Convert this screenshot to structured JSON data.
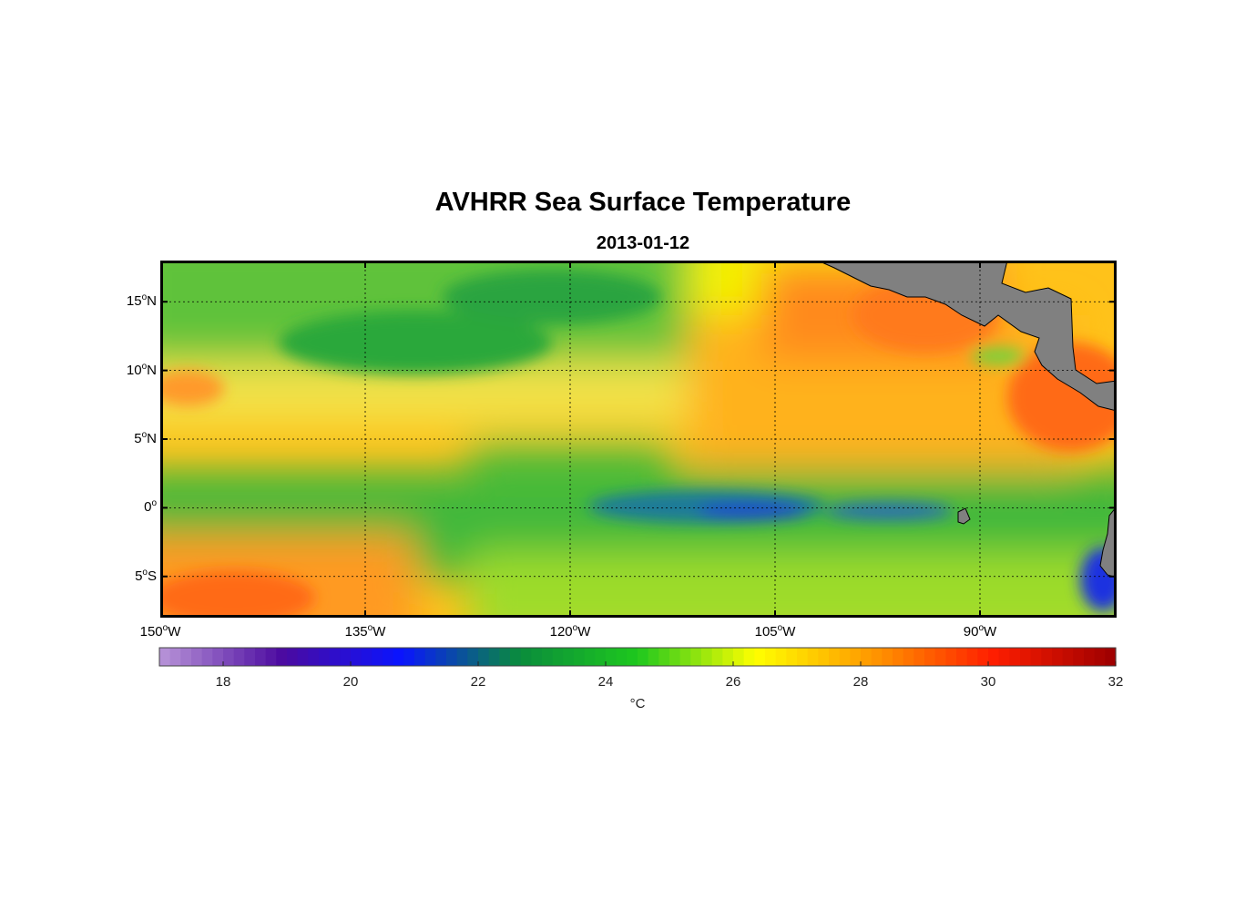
{
  "title": "AVHRR Sea Surface Temperature",
  "subtitle": "2013-01-12",
  "map": {
    "lat_labels": [
      {
        "value": 15,
        "deg": "15",
        "hem": "N"
      },
      {
        "value": 10,
        "deg": "10",
        "hem": "N"
      },
      {
        "value": 5,
        "deg": "5",
        "hem": "N"
      },
      {
        "value": 0,
        "deg": "0",
        "hem": ""
      },
      {
        "value": -5,
        "deg": "5",
        "hem": "S"
      }
    ],
    "lon_labels": [
      {
        "value": -150,
        "deg": "150",
        "hem": "W"
      },
      {
        "value": -135,
        "deg": "135",
        "hem": "W"
      },
      {
        "value": -120,
        "deg": "120",
        "hem": "W"
      },
      {
        "value": -105,
        "deg": "105",
        "hem": "W"
      },
      {
        "value": -90,
        "deg": "90",
        "hem": "W"
      }
    ],
    "land_color": "#808080",
    "grid": "dotted"
  },
  "colorbar": {
    "ticks": [
      "18",
      "20",
      "22",
      "24",
      "26",
      "28",
      "30",
      "32"
    ],
    "tick_values": [
      18,
      20,
      22,
      24,
      26,
      28,
      30,
      32
    ],
    "range": [
      17,
      32
    ],
    "unit": "°C",
    "colors": [
      "#b48fd6",
      "#4b0aa0",
      "#0a14ff",
      "#0a8c3c",
      "#1ec81e",
      "#ffff00",
      "#ff9600",
      "#ff1e00",
      "#a00000"
    ]
  },
  "chart_data": {
    "type": "heatmap",
    "title": "AVHRR Sea Surface Temperature",
    "subtitle": "2013-01-12",
    "xlabel": "",
    "ylabel": "",
    "xlim": [
      -150,
      -80
    ],
    "ylim": [
      -8,
      18
    ],
    "colorbar_label": "°C",
    "colorbar_range": [
      17,
      32
    ]
  }
}
